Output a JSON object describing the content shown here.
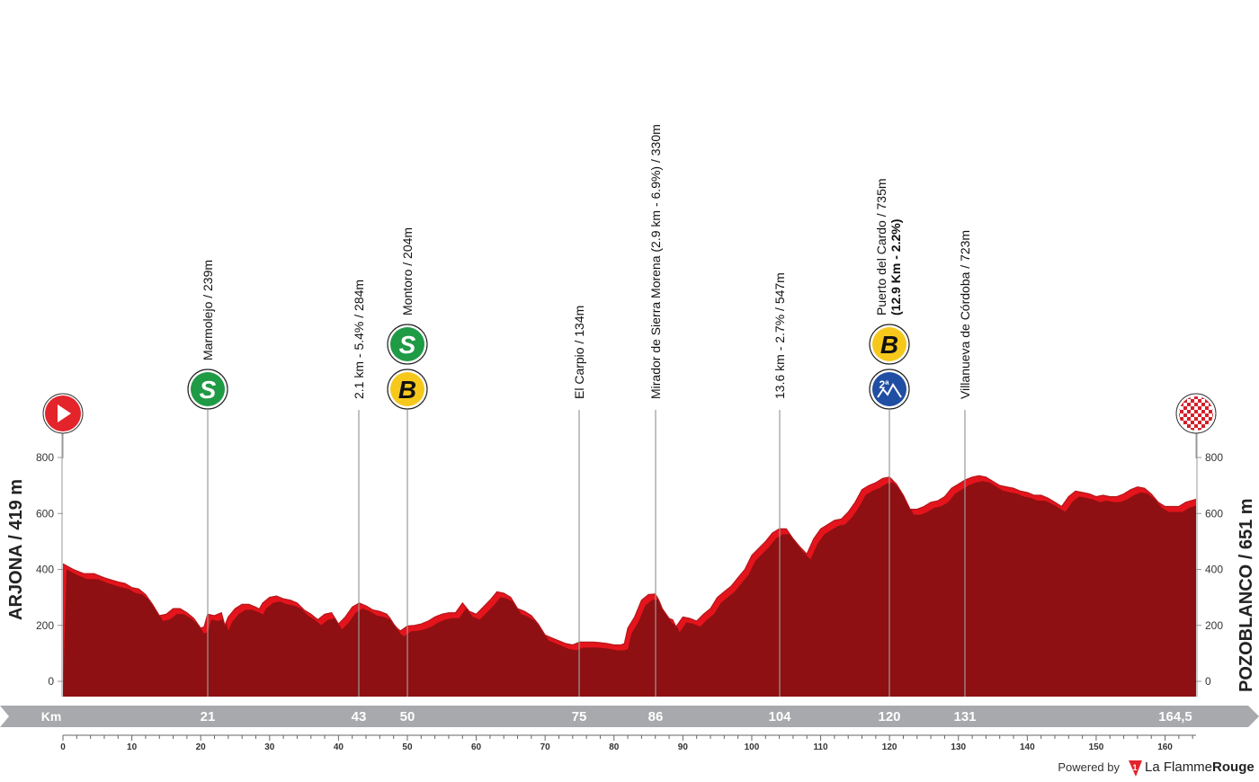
{
  "chart_data": {
    "type": "area",
    "start_label": "ARJONA / 419 m",
    "finish_label": "POZOBLANCO / 651 m",
    "km_unit_label": "Km",
    "y_ticks": [
      0,
      200,
      400,
      600,
      800
    ],
    "ylim": [
      -50,
      820
    ],
    "xlim": [
      0,
      164.5
    ],
    "x_ticks": [
      0,
      10,
      20,
      30,
      40,
      50,
      60,
      70,
      80,
      90,
      100,
      110,
      120,
      130,
      140,
      150,
      160
    ],
    "profile": [
      [
        0,
        420
      ],
      [
        1.5,
        400
      ],
      [
        3,
        385
      ],
      [
        4.5,
        385
      ],
      [
        6,
        370
      ],
      [
        8,
        355
      ],
      [
        9,
        350
      ],
      [
        10,
        335
      ],
      [
        11,
        330
      ],
      [
        12,
        310
      ],
      [
        13,
        275
      ],
      [
        14,
        235
      ],
      [
        15,
        240
      ],
      [
        16,
        260
      ],
      [
        17,
        260
      ],
      [
        18,
        245
      ],
      [
        19,
        225
      ],
      [
        20,
        190
      ],
      [
        20.5,
        195
      ],
      [
        21,
        240
      ],
      [
        22,
        235
      ],
      [
        23,
        245
      ],
      [
        23.5,
        200
      ],
      [
        24,
        230
      ],
      [
        25,
        260
      ],
      [
        26,
        275
      ],
      [
        27,
        275
      ],
      [
        28,
        265
      ],
      [
        28.5,
        258
      ],
      [
        29,
        280
      ],
      [
        30,
        300
      ],
      [
        31,
        305
      ],
      [
        32,
        295
      ],
      [
        33,
        290
      ],
      [
        34,
        280
      ],
      [
        35,
        255
      ],
      [
        36,
        240
      ],
      [
        37,
        220
      ],
      [
        38,
        240
      ],
      [
        39,
        245
      ],
      [
        40,
        205
      ],
      [
        41,
        230
      ],
      [
        42,
        265
      ],
      [
        43,
        280
      ],
      [
        44,
        270
      ],
      [
        45,
        255
      ],
      [
        46,
        250
      ],
      [
        47,
        240
      ],
      [
        47.5,
        225
      ],
      [
        48,
        205
      ],
      [
        48.5,
        190
      ],
      [
        49,
        180
      ],
      [
        50,
        198
      ],
      [
        51,
        200
      ],
      [
        52,
        205
      ],
      [
        53,
        215
      ],
      [
        54,
        230
      ],
      [
        55,
        240
      ],
      [
        56,
        245
      ],
      [
        57,
        245
      ],
      [
        58,
        280
      ],
      [
        59,
        250
      ],
      [
        60,
        240
      ],
      [
        61,
        265
      ],
      [
        62,
        290
      ],
      [
        63,
        320
      ],
      [
        64,
        315
      ],
      [
        65,
        300
      ],
      [
        66,
        260
      ],
      [
        67,
        250
      ],
      [
        68,
        235
      ],
      [
        69,
        205
      ],
      [
        70,
        165
      ],
      [
        71,
        155
      ],
      [
        72,
        145
      ],
      [
        73,
        135
      ],
      [
        74,
        130
      ],
      [
        75,
        140
      ],
      [
        76,
        140
      ],
      [
        77,
        140
      ],
      [
        78,
        138
      ],
      [
        79,
        135
      ],
      [
        80,
        130
      ],
      [
        81,
        130
      ],
      [
        81.5,
        135
      ],
      [
        82,
        190
      ],
      [
        83,
        230
      ],
      [
        84,
        290
      ],
      [
        85,
        310
      ],
      [
        86,
        312
      ],
      [
        86.5,
        290
      ],
      [
        87,
        260
      ],
      [
        88,
        225
      ],
      [
        88.5,
        220
      ],
      [
        89,
        195
      ],
      [
        90,
        230
      ],
      [
        91,
        225
      ],
      [
        92,
        215
      ],
      [
        93,
        240
      ],
      [
        94,
        260
      ],
      [
        95,
        300
      ],
      [
        96,
        320
      ],
      [
        97,
        340
      ],
      [
        98,
        370
      ],
      [
        99,
        400
      ],
      [
        100,
        450
      ],
      [
        101,
        475
      ],
      [
        102,
        500
      ],
      [
        103,
        530
      ],
      [
        104,
        545
      ],
      [
        105,
        545
      ],
      [
        106,
        510
      ],
      [
        107,
        480
      ],
      [
        108,
        455
      ],
      [
        109,
        510
      ],
      [
        110,
        545
      ],
      [
        111,
        560
      ],
      [
        112,
        575
      ],
      [
        113,
        580
      ],
      [
        114,
        605
      ],
      [
        115,
        640
      ],
      [
        116,
        685
      ],
      [
        117,
        700
      ],
      [
        118,
        710
      ],
      [
        119,
        725
      ],
      [
        120,
        730
      ],
      [
        121,
        705
      ],
      [
        122,
        665
      ],
      [
        123,
        615
      ],
      [
        124,
        615
      ],
      [
        125,
        625
      ],
      [
        126,
        640
      ],
      [
        127,
        645
      ],
      [
        128,
        660
      ],
      [
        129,
        690
      ],
      [
        130,
        705
      ],
      [
        131,
        720
      ],
      [
        132,
        730
      ],
      [
        133,
        735
      ],
      [
        134,
        730
      ],
      [
        135,
        715
      ],
      [
        136,
        700
      ],
      [
        137,
        695
      ],
      [
        138,
        690
      ],
      [
        139,
        680
      ],
      [
        140,
        675
      ],
      [
        141,
        665
      ],
      [
        142,
        665
      ],
      [
        143,
        655
      ],
      [
        144,
        640
      ],
      [
        145,
        625
      ],
      [
        146,
        660
      ],
      [
        147,
        680
      ],
      [
        148,
        675
      ],
      [
        149,
        670
      ],
      [
        150,
        660
      ],
      [
        151,
        665
      ],
      [
        152,
        660
      ],
      [
        153,
        660
      ],
      [
        154,
        670
      ],
      [
        155,
        685
      ],
      [
        156,
        695
      ],
      [
        157,
        690
      ],
      [
        158,
        670
      ],
      [
        159,
        640
      ],
      [
        160,
        625
      ],
      [
        161,
        625
      ],
      [
        162,
        625
      ],
      [
        163,
        640
      ],
      [
        164.5,
        651
      ]
    ],
    "points": [
      {
        "km": 21,
        "km_label": "21",
        "label": "Marmolejo / 239m",
        "label2": "",
        "badges": [
          {
            "type": "sprint",
            "text": "S"
          }
        ]
      },
      {
        "km": 43,
        "km_label": "43",
        "label": "2.1 km - 5.4% / 284m",
        "label2": "",
        "badges": []
      },
      {
        "km": 50,
        "km_label": "50",
        "label": "Montoro / 204m",
        "label2": "",
        "badges": [
          {
            "type": "sprint",
            "text": "S"
          },
          {
            "type": "bonus",
            "text": "B"
          }
        ]
      },
      {
        "km": 75,
        "km_label": "75",
        "label": "El Carpio / 134m",
        "label2": "",
        "badges": []
      },
      {
        "km": 86,
        "km_label": "86",
        "label": "Mirador de Sierra Morena (2.9 km - 6.9%) / 330m",
        "label2": "",
        "badges": []
      },
      {
        "km": 104,
        "km_label": "104",
        "label": "13.6 km - 2.7% / 547m",
        "label2": "",
        "badges": []
      },
      {
        "km": 120,
        "km_label": "120",
        "label": "Puerto del Cardo / 735m",
        "label2": "(12.9 Km - 2.2%)",
        "badges": [
          {
            "type": "bonus",
            "text": "B"
          },
          {
            "type": "climb",
            "text": "2ª"
          }
        ]
      },
      {
        "km": 131,
        "km_label": "131",
        "label": "Villanueva de Córdoba / 723m",
        "label2": "",
        "badges": []
      }
    ],
    "finish_km_label": "164,5"
  },
  "colors": {
    "profile_fill": "#8e1012",
    "profile_edge": "#e5141c",
    "km_band": "#a7a9ac",
    "sprint": "#1f9a45",
    "bonus": "#f6c81c",
    "climb": "#1f4ea3",
    "start": "#e3242b"
  },
  "credit": {
    "powered_by": "Powered by",
    "brand_la": "La Flamme",
    "brand_rouge": "Rouge"
  }
}
